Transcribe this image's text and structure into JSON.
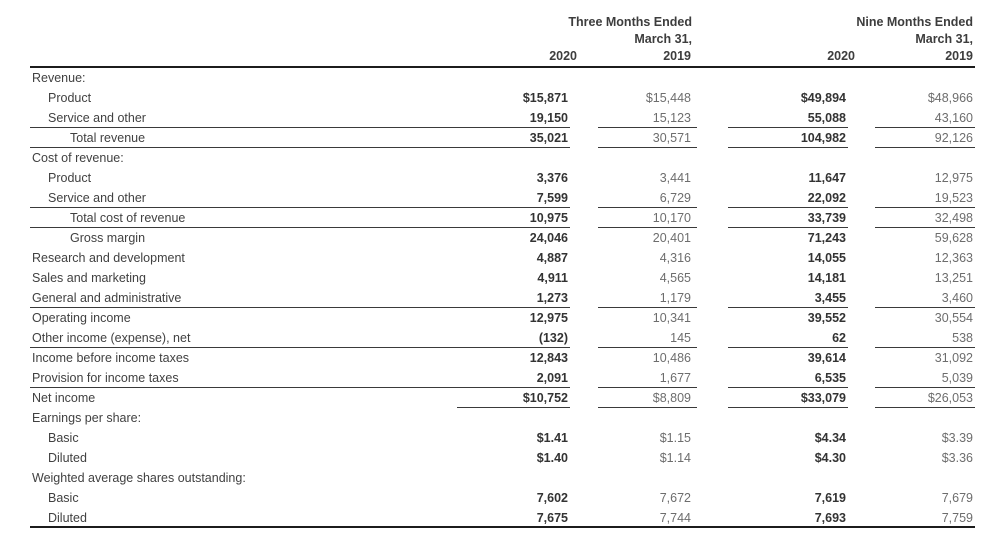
{
  "colors": {
    "label_text": "#414141",
    "value_2019": "#6d6d6d",
    "value_2020": "#333333",
    "header_text": "#3d3d3d",
    "rule_thick": "#1c1c1c",
    "rule_thin": "#3a3a3a"
  },
  "header": {
    "periods": [
      {
        "line1": "Three Months Ended",
        "line2": "March 31,"
      },
      {
        "line1": "Nine Months Ended",
        "line2": "March 31,"
      }
    ],
    "years": [
      "2020",
      "2019",
      "2020",
      "2019"
    ]
  },
  "table": {
    "bold_value_columns": [
      0,
      2
    ],
    "rows": [
      {
        "label": "Revenue:",
        "indent": 0,
        "underline": "none",
        "values": [
          "",
          "",
          "",
          ""
        ]
      },
      {
        "label": "Product",
        "indent": 1,
        "underline": "none",
        "values": [
          "$15,871",
          "$15,448",
          "$49,894",
          "$48,966"
        ]
      },
      {
        "label": "Service and other",
        "indent": 1,
        "underline": "row",
        "values": [
          "19,150",
          "15,123",
          "55,088",
          "43,160"
        ]
      },
      {
        "label": "Total revenue",
        "indent": 2,
        "underline": "row",
        "values": [
          "35,021",
          "30,571",
          "104,982",
          "92,126"
        ]
      },
      {
        "label": "Cost of revenue:",
        "indent": 0,
        "underline": "none",
        "values": [
          "",
          "",
          "",
          ""
        ]
      },
      {
        "label": "Product",
        "indent": 1,
        "underline": "none",
        "values": [
          "3,376",
          "3,441",
          "11,647",
          "12,975"
        ]
      },
      {
        "label": "Service and other",
        "indent": 1,
        "underline": "row",
        "values": [
          "7,599",
          "6,729",
          "22,092",
          "19,523"
        ]
      },
      {
        "label": "Total cost of revenue",
        "indent": 2,
        "underline": "row",
        "values": [
          "10,975",
          "10,170",
          "33,739",
          "32,498"
        ]
      },
      {
        "label": "Gross margin",
        "indent": 2,
        "underline": "none",
        "values": [
          "24,046",
          "20,401",
          "71,243",
          "59,628"
        ]
      },
      {
        "label": "Research and development",
        "indent": 0,
        "underline": "none",
        "values": [
          "4,887",
          "4,316",
          "14,055",
          "12,363"
        ]
      },
      {
        "label": "Sales and marketing",
        "indent": 0,
        "underline": "none",
        "values": [
          "4,911",
          "4,565",
          "14,181",
          "13,251"
        ]
      },
      {
        "label": "General and administrative",
        "indent": 0,
        "underline": "row",
        "values": [
          "1,273",
          "1,179",
          "3,455",
          "3,460"
        ]
      },
      {
        "label": "Operating income",
        "indent": 0,
        "underline": "none",
        "values": [
          "12,975",
          "10,341",
          "39,552",
          "30,554"
        ]
      },
      {
        "label": "Other income (expense), net",
        "indent": 0,
        "underline": "row",
        "values": [
          "(132)",
          "145",
          "62",
          "538"
        ]
      },
      {
        "label": "Income before income taxes",
        "indent": 0,
        "underline": "none",
        "values": [
          "12,843",
          "10,486",
          "39,614",
          "31,092"
        ]
      },
      {
        "label": "Provision for income taxes",
        "indent": 0,
        "underline": "row",
        "values": [
          "2,091",
          "1,677",
          "6,535",
          "5,039"
        ]
      },
      {
        "label": "Net income",
        "indent": 0,
        "underline": "cols",
        "values": [
          "$10,752",
          "$8,809",
          "$33,079",
          "$26,053"
        ]
      },
      {
        "label": "Earnings per share:",
        "indent": 0,
        "underline": "none",
        "values": [
          "",
          "",
          "",
          ""
        ]
      },
      {
        "label": "Basic",
        "indent": 1,
        "underline": "none",
        "values": [
          "$1.41",
          "$1.15",
          "$4.34",
          "$3.39"
        ]
      },
      {
        "label": "Diluted",
        "indent": 1,
        "underline": "none",
        "values": [
          "$1.40",
          "$1.14",
          "$4.30",
          "$3.36"
        ]
      },
      {
        "label": "Weighted average shares outstanding:",
        "indent": 0,
        "underline": "none",
        "values": [
          "",
          "",
          "",
          ""
        ]
      },
      {
        "label": "Basic",
        "indent": 1,
        "underline": "none",
        "values": [
          "7,602",
          "7,672",
          "7,619",
          "7,679"
        ]
      },
      {
        "label": "Diluted",
        "indent": 1,
        "underline": "full",
        "values": [
          "7,675",
          "7,744",
          "7,693",
          "7,759"
        ]
      }
    ]
  }
}
